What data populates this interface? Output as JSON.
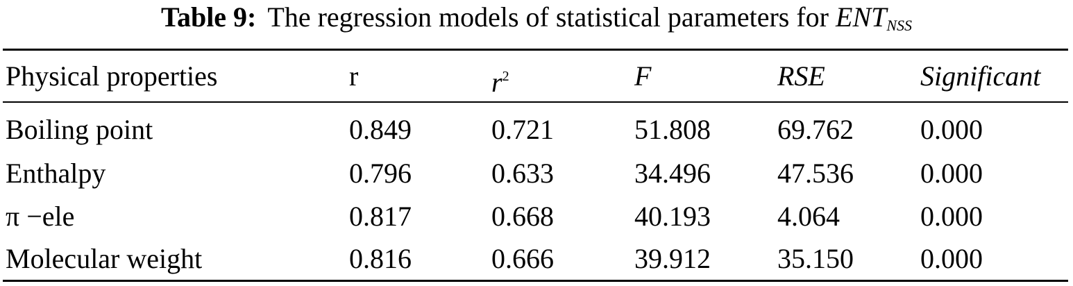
{
  "caption": {
    "label": "Table 9:",
    "text": "The regression models of statistical parameters for ",
    "symbol": "ENT",
    "subscript": "NSS"
  },
  "table": {
    "headers": {
      "property": "Physical properties",
      "r": "r",
      "r2_base": "r",
      "r2_sup": "2",
      "F": "F",
      "RSE": "RSE",
      "significant": "Significant"
    },
    "rows": [
      {
        "property": "Boiling point",
        "r": "0.849",
        "r2": "0.721",
        "F": "51.808",
        "RSE": "69.762",
        "significant": "0.000"
      },
      {
        "property": "Enthalpy",
        "r": "0.796",
        "r2": "0.633",
        "F": "34.496",
        "RSE": "47.536",
        "significant": "0.000"
      },
      {
        "property": "π −ele",
        "r": "0.817",
        "r2": "0.668",
        "F": "40.193",
        "RSE": "4.064",
        "significant": "0.000"
      },
      {
        "property": "Molecular weight",
        "r": "0.816",
        "r2": "0.666",
        "F": "39.912",
        "RSE": "35.150",
        "significant": "0.000"
      }
    ]
  }
}
